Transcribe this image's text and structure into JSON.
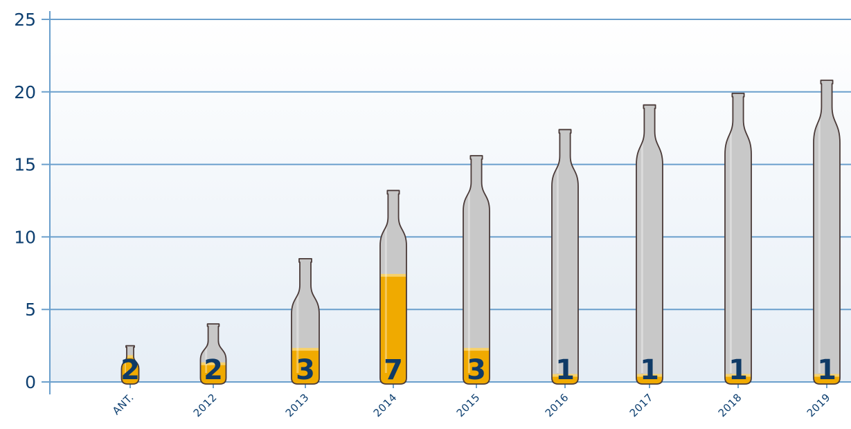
{
  "chart_data": {
    "type": "bar",
    "title": "",
    "xlabel": "",
    "ylabel": "",
    "ylim": [
      0,
      25
    ],
    "yticks": [
      0,
      5,
      10,
      15,
      20,
      25
    ],
    "ytick_labels": [
      "0",
      "5",
      "10",
      "15",
      "20",
      "25"
    ],
    "categories": [
      "ANT.",
      "2012",
      "2013",
      "2014",
      "2015",
      "2016",
      "2017",
      "2018",
      "2019"
    ],
    "bottle_heights": [
      2.5,
      4,
      8.5,
      13.2,
      15.6,
      17.4,
      19.1,
      19.9,
      20.8
    ],
    "fill_levels": [
      1.8,
      1.3,
      2.3,
      7.4,
      2.3,
      0.5,
      0.5,
      0.5,
      0.5
    ],
    "values": [
      2,
      2,
      3,
      7,
      3,
      1,
      1,
      1,
      1
    ],
    "value_labels": [
      "2",
      "2",
      "3",
      "7",
      "3",
      "1",
      "1",
      "1",
      "1"
    ],
    "grid": true,
    "colors": {
      "axis": "#6a9fcc",
      "grid": "#6a9fcc",
      "text": "#0d3f70",
      "bottle_glass": "#c8c8c8",
      "bottle_outline": "#4a3a38",
      "beer": "#f0aa00",
      "beer_foam": "#f7d16a",
      "count_text": "#0f3a66",
      "background_top": "#ffffff",
      "background_bottom": "#e6eef6"
    }
  }
}
